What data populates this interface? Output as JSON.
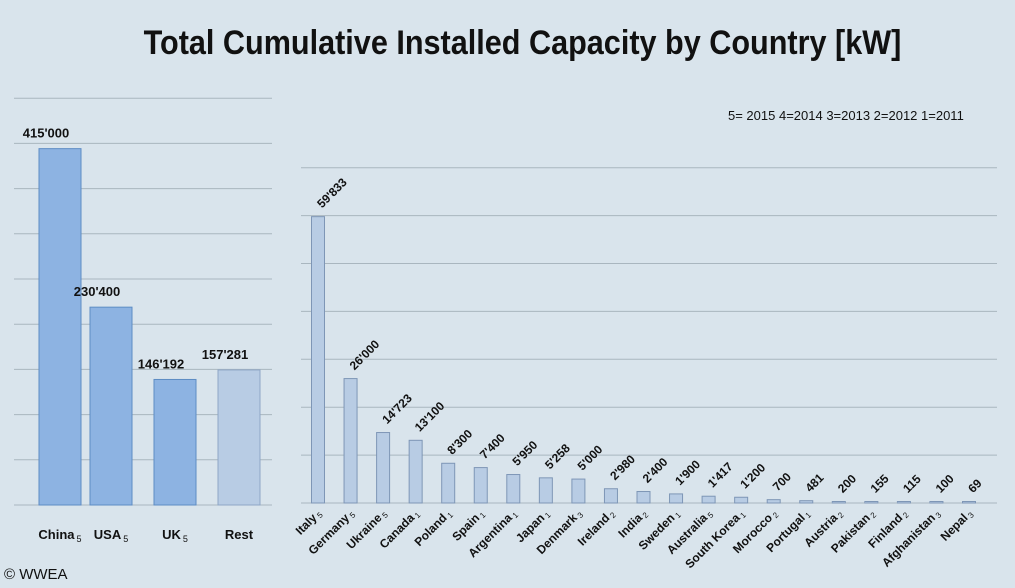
{
  "title": "Total Cumulative Installed Capacity by Country [kW]",
  "legend_note": "5= 2015  4=2014  3=2013  2=2012  1=2011",
  "copyright": "© WWEA",
  "colors": {
    "bar_main": "#8db3e2",
    "bar_main_stroke": "#5d8cc4",
    "bar_rest": "#b8cce4",
    "bar_rest_stroke": "#8ea6c6",
    "bar_small": "#b8cce4",
    "bar_small_stroke": "#7e96b6",
    "grid": "#a9b6bf"
  },
  "chart_data": [
    {
      "type": "bar",
      "title": "",
      "categories": [
        "China",
        "USA",
        "UK",
        "Rest"
      ],
      "category_year_codes": [
        "5",
        "5",
        "5",
        ""
      ],
      "values": [
        415000,
        230400,
        146192,
        157281
      ],
      "value_labels": [
        "415'000",
        "230'400",
        "146'192",
        "157'281"
      ],
      "ylim": [
        0,
        460000
      ],
      "grid": true,
      "xlabel": "",
      "ylabel": ""
    },
    {
      "type": "bar",
      "title": "",
      "categories": [
        "Italy",
        "Germany",
        "Ukraine",
        "Canada",
        "Poland",
        "Spain",
        "Argentina",
        "Japan",
        "Denmark",
        "Ireland",
        "India",
        "Sweden",
        "Australia",
        "South Korea",
        "Morocco",
        "Portugal",
        "Austria",
        "Pakistan",
        "Finland",
        "Afghanistan",
        "Nepal"
      ],
      "category_year_codes": [
        "5",
        "5",
        "5",
        "1",
        "1",
        "1",
        "1",
        "1",
        "3",
        "2",
        "2",
        "1",
        "5",
        "1",
        "2",
        "1",
        "2",
        "2",
        "2",
        "3",
        "3"
      ],
      "values": [
        59833,
        26000,
        14723,
        13100,
        8300,
        7400,
        5950,
        5258,
        5000,
        2980,
        2400,
        1900,
        1417,
        1200,
        700,
        481,
        200,
        155,
        115,
        100,
        69
      ],
      "value_labels": [
        "59'833",
        "26'000",
        "14'723",
        "13'100",
        "8'300",
        "7'400",
        "5'950",
        "5'258",
        "5'000",
        "2'980",
        "2'400",
        "1'900",
        "1'417",
        "1'200",
        "700",
        "481",
        "200",
        "155",
        "115",
        "100",
        "69"
      ],
      "ylim": [
        0,
        70000
      ],
      "grid": true,
      "xlabel": "",
      "ylabel": ""
    }
  ]
}
